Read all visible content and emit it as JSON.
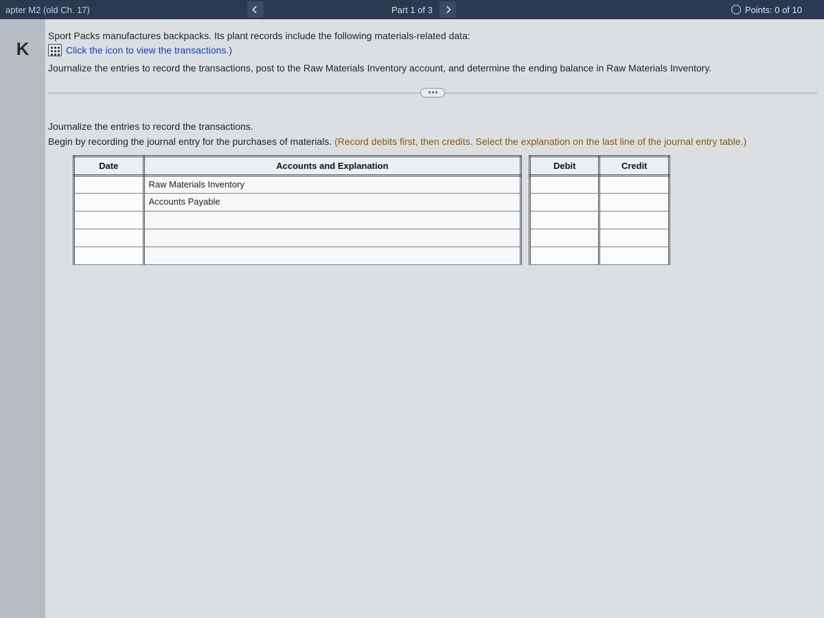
{
  "topbar": {
    "chapter_label": "apter M2 (old Ch. 17)",
    "part_label": "Part 1 of 3",
    "points_label": "Points: 0 of 10"
  },
  "problem": {
    "intro": "Sport Packs manufactures backpacks. Its plant records include the following materials-related data:",
    "view_link": "Click the icon to view the transactions.)",
    "instruction": "Journalize the entries to record the transactions, post to the Raw Materials Inventory account, and determine the ending balance in Raw Materials Inventory."
  },
  "section": {
    "heading": "Journalize the entries to record the transactions.",
    "hint_lead": "Begin by recording the journal entry for the purchases of materials. ",
    "hint_paren": "(Record debits first, then credits. Select the explanation on the last line of the journal entry table.)"
  },
  "table": {
    "headers": {
      "date": "Date",
      "accounts": "Accounts and Explanation",
      "debit": "Debit",
      "credit": "Credit"
    },
    "rows": [
      {
        "date": "",
        "account": "Raw Materials Inventory",
        "debit": "",
        "credit": ""
      },
      {
        "date": "",
        "account": "Accounts Payable",
        "debit": "",
        "credit": ""
      },
      {
        "date": "",
        "account": "",
        "debit": "",
        "credit": ""
      },
      {
        "date": "",
        "account": "",
        "debit": "",
        "credit": ""
      },
      {
        "date": "",
        "account": "",
        "debit": "",
        "credit": ""
      }
    ]
  },
  "style": {
    "bg": "#dcdfe2",
    "topbar_bg": "#2a3a52",
    "link_color": "#0645c8",
    "hint_color": "#8a5a00",
    "cell_bg": "#f6f7f9",
    "border_color": "#4a4a4a"
  }
}
